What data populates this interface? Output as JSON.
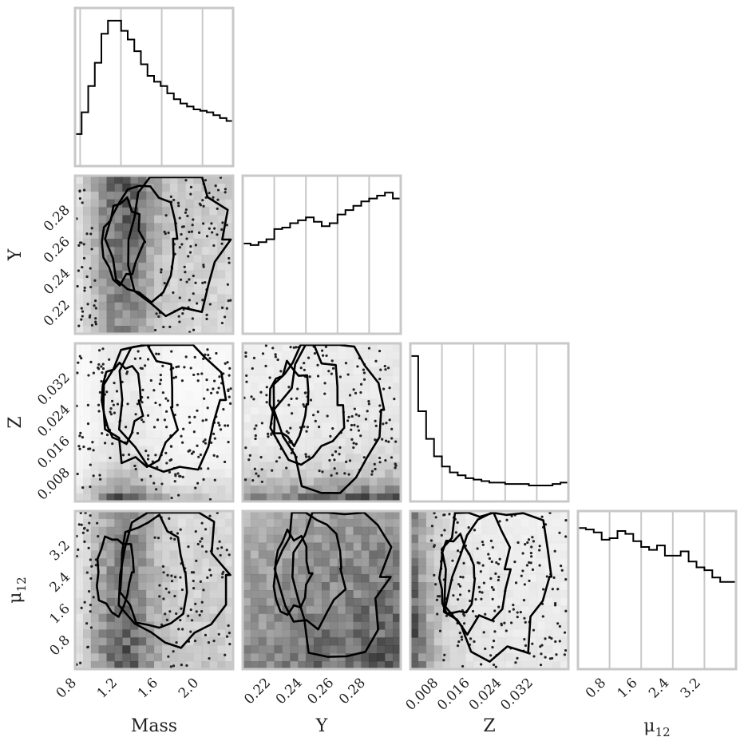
{
  "chart_data": {
    "type": "corner",
    "parameters": [
      {
        "key": "mass",
        "label": "Mass",
        "range": [
          0.75,
          2.3
        ],
        "ticks": [
          {
            "v": 0.8,
            "t": "0.8"
          },
          {
            "v": 1.2,
            "t": "1.2"
          },
          {
            "v": 1.6,
            "t": "1.6"
          },
          {
            "v": 2.0,
            "t": "2.0"
          }
        ]
      },
      {
        "key": "Y",
        "label": "Y",
        "range": [
          0.2,
          0.3
        ],
        "ticks": [
          {
            "v": 0.22,
            "t": "0.22"
          },
          {
            "v": 0.24,
            "t": "0.24"
          },
          {
            "v": 0.26,
            "t": "0.26"
          },
          {
            "v": 0.28,
            "t": "0.28"
          }
        ]
      },
      {
        "key": "Z",
        "label": "Z",
        "range": [
          0.0,
          0.04
        ],
        "ticks": [
          {
            "v": 0.008,
            "t": "0.008"
          },
          {
            "v": 0.016,
            "t": "0.016"
          },
          {
            "v": 0.024,
            "t": "0.024"
          },
          {
            "v": 0.032,
            "t": "0.032"
          }
        ]
      },
      {
        "key": "mu12",
        "label": "μ",
        "label_sub": "12",
        "range": [
          0.0,
          4.0
        ],
        "ticks": [
          {
            "v": 0.8,
            "t": "0.8"
          },
          {
            "v": 1.6,
            "t": "1.6"
          },
          {
            "v": 2.4,
            "t": "2.4"
          },
          {
            "v": 3.2,
            "t": "3.2"
          }
        ]
      }
    ],
    "histograms": [
      {
        "param": "mass",
        "values": [
          0.22,
          0.37,
          0.55,
          0.71,
          0.91,
          1.0,
          1.0,
          0.93,
          0.87,
          0.79,
          0.7,
          0.62,
          0.58,
          0.55,
          0.5,
          0.46,
          0.43,
          0.41,
          0.39,
          0.38,
          0.37,
          0.35,
          0.33,
          0.31
        ]
      },
      {
        "param": "Y",
        "values": [
          0.62,
          0.61,
          0.63,
          0.65,
          0.72,
          0.73,
          0.76,
          0.78,
          0.8,
          0.77,
          0.74,
          0.76,
          0.82,
          0.85,
          0.88,
          0.91,
          0.93,
          0.95,
          0.97,
          0.93
        ]
      },
      {
        "param": "Z",
        "values": [
          1.0,
          0.62,
          0.43,
          0.31,
          0.24,
          0.2,
          0.18,
          0.16,
          0.15,
          0.14,
          0.13,
          0.13,
          0.12,
          0.12,
          0.12,
          0.11,
          0.11,
          0.11,
          0.12,
          0.13
        ]
      },
      {
        "param": "mu12",
        "values": [
          0.97,
          0.96,
          0.94,
          0.89,
          0.9,
          0.95,
          0.93,
          0.88,
          0.84,
          0.82,
          0.85,
          0.78,
          0.78,
          0.81,
          0.74,
          0.7,
          0.68,
          0.63,
          0.6,
          0.6
        ]
      }
    ],
    "pairs": [
      {
        "x": "mass",
        "y": "Y",
        "contour_levels": 3
      },
      {
        "x": "mass",
        "y": "Z",
        "contour_levels": 3
      },
      {
        "x": "Y",
        "y": "Z",
        "contour_levels": 3
      },
      {
        "x": "mass",
        "y": "mu12",
        "contour_levels": 3
      },
      {
        "x": "Y",
        "y": "mu12",
        "contour_levels": 3
      },
      {
        "x": "Z",
        "y": "mu12",
        "contour_levels": 3
      }
    ],
    "grid": true,
    "colormap": "greys"
  }
}
